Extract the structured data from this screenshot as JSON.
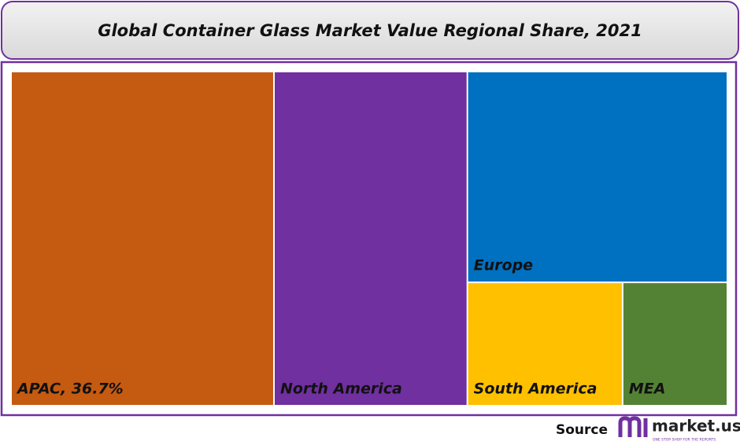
{
  "chart_data": {
    "type": "treemap",
    "title": "Global Container Glass Market Value Regional Share, 2021",
    "labels": [
      "APAC, 36.7%",
      "North America",
      "Europe",
      "South America",
      "MEA"
    ],
    "values": [
      36.7,
      27.0,
      22.9,
      8.0,
      5.4
    ],
    "colors": [
      "#c55a11",
      "#7030a0",
      "#0070c0",
      "#ffc000",
      "#548235"
    ]
  },
  "footer": {
    "source": "Source",
    "brand": "market.us",
    "tagline": "ONE STOP SHOP FOR THE REPORTS"
  }
}
